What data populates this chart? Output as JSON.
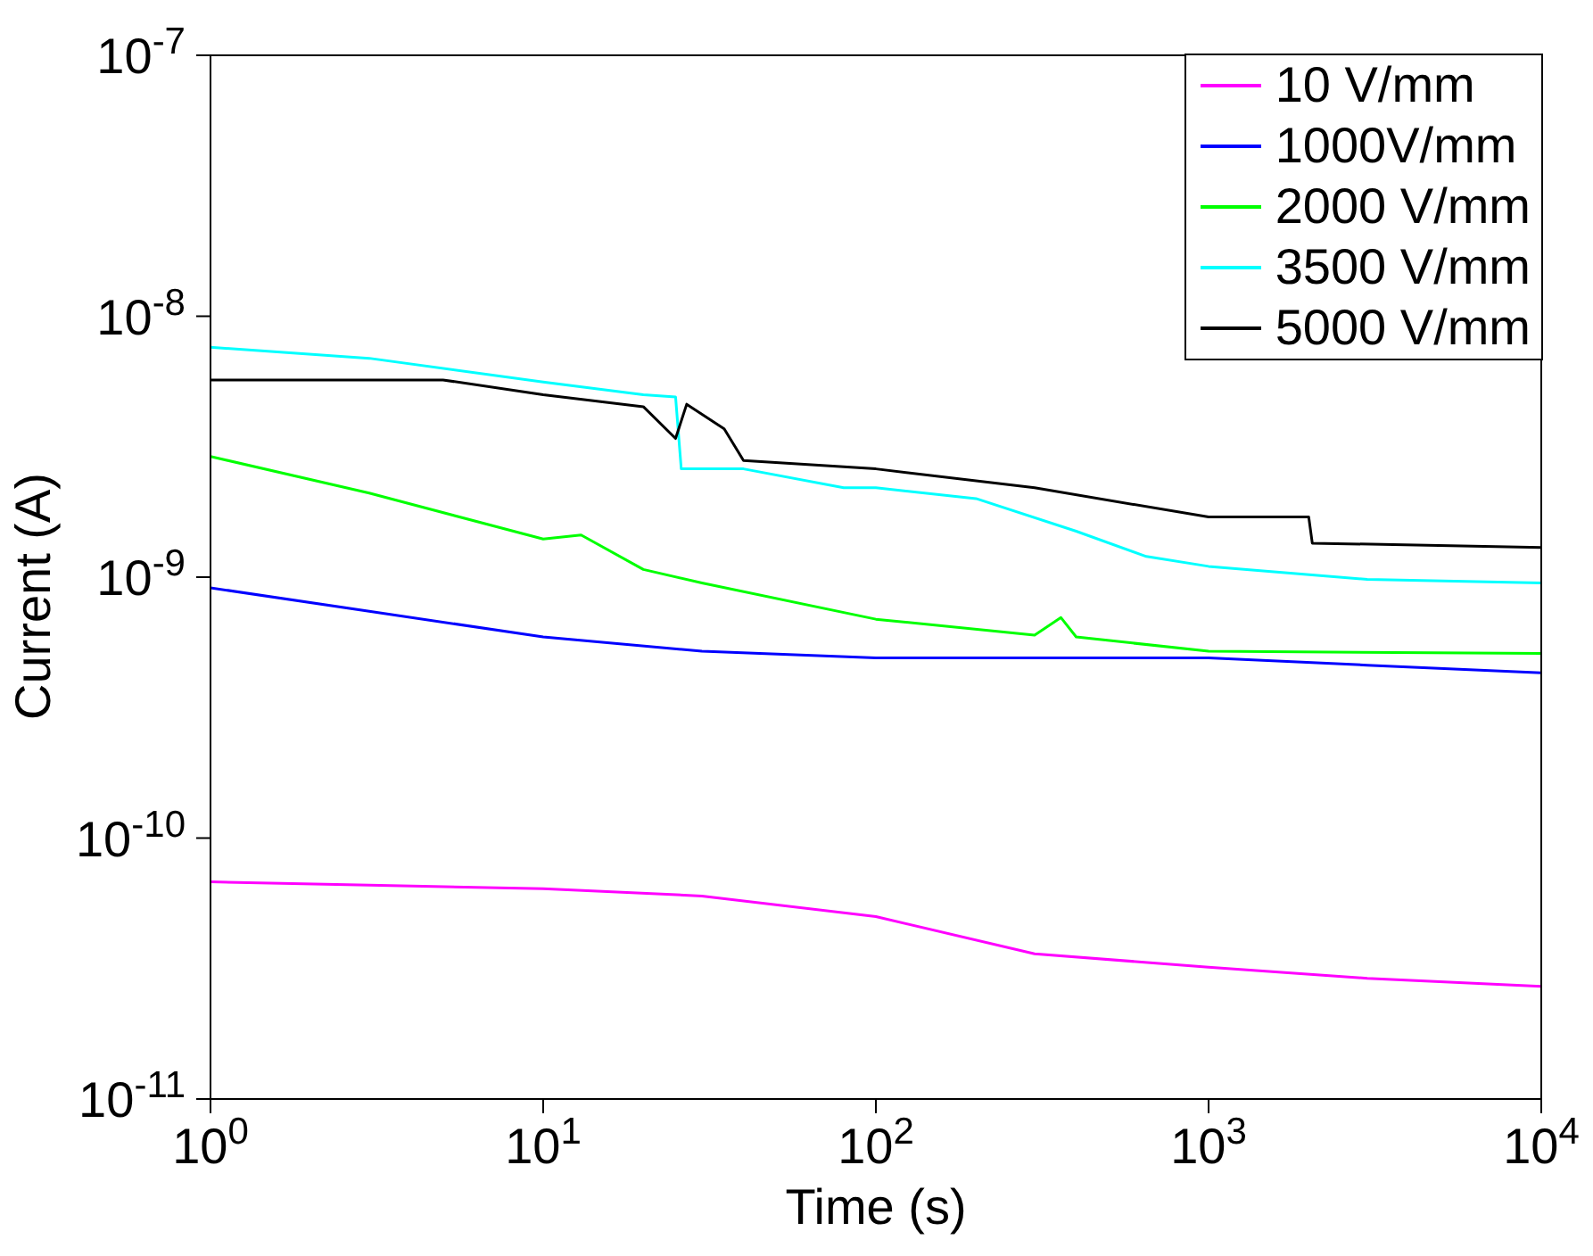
{
  "chart_data": {
    "type": "line",
    "xlabel": "Time (s)",
    "ylabel": "Current (A)",
    "log": "xy",
    "grid": false,
    "legend": "top right",
    "marker": "none",
    "line_style": "solid",
    "xlim": [
      1,
      10000
    ],
    "xticks": [
      {
        "value": 1,
        "label": "10$^{0}$"
      },
      {
        "value": 10,
        "label": "10$^{1}$"
      },
      {
        "value": 100,
        "label": "10$^{2}$"
      },
      {
        "value": 1000,
        "label": "10$^{3}$"
      },
      {
        "value": 10000,
        "label": "10$^{4}$"
      }
    ],
    "ylim": [
      1e-11,
      1e-07
    ],
    "yticks": [
      {
        "value": 1e-11,
        "label": "10$^{-11}$"
      },
      {
        "value": 1e-10,
        "label": "10$^{-10}$"
      },
      {
        "value": 1e-09,
        "label": "10$^{-9}$"
      },
      {
        "value": 1e-08,
        "label": "10$^{-8}$"
      },
      {
        "value": 1e-07,
        "label": "10$^{-7}$"
      }
    ],
    "series": [
      {
        "name": "10 V/mm",
        "color": "#ff00ff",
        "x": [
          1,
          3,
          10,
          30,
          100,
          300,
          1000,
          3000,
          10000
        ],
        "values": [
          6.8e-11,
          6.6e-11,
          6.4e-11,
          6e-11,
          5e-11,
          3.6e-11,
          3.2e-11,
          2.9e-11,
          2.7e-11
        ]
      },
      {
        "name": "1000V/mm",
        "color": "#0000ff",
        "x": [
          1,
          3,
          10,
          30,
          100,
          1000,
          3000,
          10000
        ],
        "values": [
          9.1e-10,
          7.4e-10,
          5.9e-10,
          5.2e-10,
          4.9e-10,
          4.9e-10,
          4.6e-10,
          4.3e-10
        ]
      },
      {
        "name": "2000 V/mm",
        "color": "#00ff00",
        "x": [
          1,
          3,
          10,
          13,
          20,
          30,
          100,
          300,
          360,
          400,
          1000,
          10000
        ],
        "values": [
          2.9e-09,
          2.1e-09,
          1.4e-09,
          1.45e-09,
          1.07e-09,
          9.5e-10,
          6.9e-10,
          6e-10,
          7e-10,
          5.9e-10,
          5.2e-10,
          5.1e-10
        ]
      },
      {
        "name": "3500 V/mm",
        "color": "#00ffff",
        "x": [
          1,
          3,
          10,
          20,
          25,
          26,
          40,
          80,
          100,
          200,
          400,
          650,
          1000,
          3000,
          10000
        ],
        "values": [
          7.6e-09,
          6.9e-09,
          5.6e-09,
          5e-09,
          4.9e-09,
          2.6e-09,
          2.6e-09,
          2.2e-09,
          2.2e-09,
          2e-09,
          1.5e-09,
          1.2e-09,
          1.1e-09,
          9.8e-10,
          9.5e-10
        ]
      },
      {
        "name": "5000 V/mm",
        "color": "#000000",
        "x": [
          1,
          5,
          10,
          20,
          25,
          27,
          35,
          40,
          100,
          300,
          1000,
          2000,
          2050,
          10000
        ],
        "values": [
          5.7e-09,
          5.7e-09,
          5e-09,
          4.5e-09,
          3.4e-09,
          4.6e-09,
          3.7e-09,
          2.8e-09,
          2.6e-09,
          2.2e-09,
          1.7e-09,
          1.7e-09,
          1.35e-09,
          1.3e-09
        ]
      }
    ]
  }
}
